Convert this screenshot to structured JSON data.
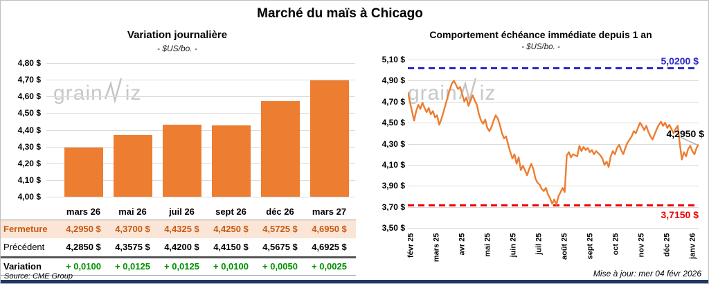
{
  "page": {
    "title": "Marché du maïs à Chicago",
    "source": "Source: CME Group",
    "updated": "Mise à jour: mer 04 févr 2026",
    "watermark": "grainwiz"
  },
  "colors": {
    "orange": "#ED7D31",
    "peach_bg": "#FBE5D6",
    "brown": "#C55A11",
    "green": "#009100",
    "blue": "#2A2ACB",
    "red": "#EE0000",
    "navy": "#1F3864",
    "grid": "#DADADA",
    "watermark": "#C8C8C8"
  },
  "chart_data": [
    {
      "type": "bar",
      "title": "Variation journalière",
      "subtitle": "- $US/bo. -",
      "categories": [
        "mars 26",
        "mai 26",
        "juil 26",
        "sept 26",
        "déc 26",
        "mars 27"
      ],
      "values": [
        4.295,
        4.37,
        4.4325,
        4.425,
        4.5725,
        4.695
      ],
      "ylim": [
        4.0,
        4.8
      ],
      "ytick_labels": [
        "4,80 $",
        "4,70 $",
        "4,60 $",
        "4,50 $",
        "4,40 $",
        "4,30 $",
        "4,20 $",
        "4,10 $",
        "4,00 $"
      ],
      "grid": true,
      "bar_color": "#ED7D31",
      "table": {
        "rows": [
          {
            "label": "Fermeture",
            "style": "close",
            "values": [
              "4,2950 $",
              "4,3700 $",
              "4,4325 $",
              "4,4250 $",
              "4,5725 $",
              "4,6950 $"
            ]
          },
          {
            "label": "Précédent",
            "style": "previous",
            "values": [
              "4,2850 $",
              "4,3575 $",
              "4,4200 $",
              "4,4150 $",
              "4,5675 $",
              "4,6925 $"
            ]
          },
          {
            "label": "Variation",
            "style": "variation",
            "values": [
              "+ 0,0100",
              "+ 0,0125",
              "+ 0,0125",
              "+ 0,0100",
              "+ 0,0050",
              "+ 0,0025"
            ]
          }
        ]
      }
    },
    {
      "type": "line",
      "title": "Comportement échéance immédiate depuis 1 an",
      "subtitle": "- $US/bo. -",
      "x_labels": [
        "févr 25",
        "mars 25",
        "avr 25",
        "mai 25",
        "juin 25",
        "juil 25",
        "août 25",
        "sept 25",
        "oct 25",
        "nov 25",
        "déc 25",
        "janv 26"
      ],
      "ylim": [
        3.5,
        5.1
      ],
      "ytick_labels": [
        "5,10 $",
        "4,90 $",
        "4,70 $",
        "4,50 $",
        "4,30 $",
        "4,10 $",
        "3,90 $",
        "3,70 $",
        "3,50 $"
      ],
      "grid": true,
      "line_color": "#ED7D31",
      "high_line": {
        "value": 5.02,
        "label": "5,0200 $",
        "color": "#2A2ACB"
      },
      "low_line": {
        "value": 3.715,
        "label": "3,7150 $",
        "color": "#EE0000"
      },
      "last_label": "4,2950 $",
      "series": [
        {
          "name": "échéance immédiate",
          "values": [
            4.79,
            4.7,
            4.61,
            4.52,
            4.61,
            4.67,
            4.63,
            4.69,
            4.64,
            4.6,
            4.64,
            4.58,
            4.61,
            4.55,
            4.57,
            4.48,
            4.53,
            4.6,
            4.67,
            4.74,
            4.81,
            4.87,
            4.9,
            4.86,
            4.82,
            4.84,
            4.77,
            4.7,
            4.74,
            4.66,
            4.71,
            4.76,
            4.71,
            4.67,
            4.58,
            4.52,
            4.49,
            4.53,
            4.45,
            4.42,
            4.46,
            4.52,
            4.57,
            4.54,
            4.48,
            4.4,
            4.35,
            4.37,
            4.29,
            4.22,
            4.16,
            4.2,
            4.11,
            4.17,
            4.05,
            4.09,
            4.05,
            4.0,
            4.06,
            4.11,
            4.06,
            3.97,
            3.93,
            3.91,
            3.87,
            3.85,
            3.88,
            3.82,
            3.78,
            3.73,
            3.77,
            3.72,
            3.8,
            3.84,
            3.88,
            3.84,
            4.19,
            4.22,
            4.17,
            4.2,
            4.19,
            4.18,
            4.28,
            4.23,
            4.27,
            4.24,
            4.26,
            4.22,
            4.24,
            4.2,
            4.23,
            4.21,
            4.19,
            4.16,
            4.1,
            4.13,
            4.08,
            4.18,
            4.23,
            4.2,
            4.26,
            4.29,
            4.24,
            4.2,
            4.26,
            4.31,
            4.34,
            4.37,
            4.42,
            4.4,
            4.45,
            4.5,
            4.47,
            4.43,
            4.47,
            4.41,
            4.37,
            4.34,
            4.39,
            4.44,
            4.48,
            4.51,
            4.47,
            4.5,
            4.45,
            4.48,
            4.44,
            4.4,
            4.44,
            4.47,
            4.3,
            4.15,
            4.22,
            4.18,
            4.25,
            4.28,
            4.23,
            4.2,
            4.26,
            4.295
          ]
        }
      ]
    }
  ]
}
